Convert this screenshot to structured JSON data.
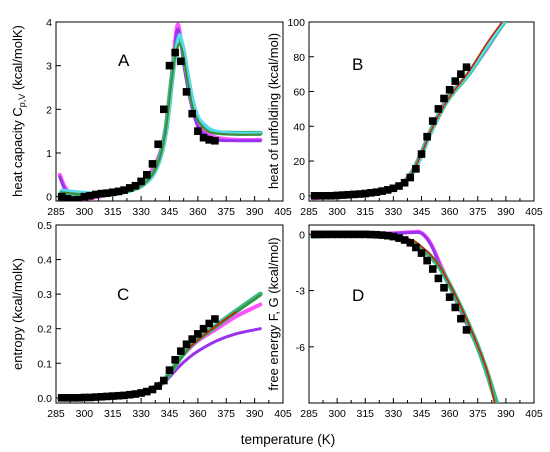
{
  "figure": {
    "xlabel": "temperature (K)"
  },
  "colors": {
    "magenta": "#ff33ff",
    "purple": "#9933ee",
    "green": "#33bb88",
    "cyan": "#55ddee",
    "darkgreen": "#448833",
    "red": "#cc2200",
    "marker": "#000000"
  },
  "chart_data": [
    {
      "panel": "A",
      "type": "line",
      "ylabel": "heat capacity C",
      "ylabel_sub": "p,V",
      "ylabel_unit": " (kcal/molK)",
      "xlim": [
        285,
        405
      ],
      "ylim": [
        -0.1,
        4
      ],
      "xticks": [
        285,
        300,
        315,
        330,
        345,
        360,
        375,
        390,
        405
      ],
      "yticks": [
        0,
        1,
        2,
        3,
        4
      ],
      "markers": {
        "x": [
          288,
          291,
          294,
          297,
          300,
          303,
          306,
          309,
          312,
          315,
          318,
          321,
          324,
          327,
          330,
          333,
          336,
          339,
          342,
          345,
          348,
          351,
          354,
          357,
          360,
          363,
          366,
          369
        ],
        "y": [
          0.0,
          -0.05,
          -0.08,
          -0.07,
          0.0,
          0.02,
          0.05,
          0.07,
          0.08,
          0.1,
          0.12,
          0.15,
          0.2,
          0.25,
          0.35,
          0.5,
          0.75,
          1.2,
          2.0,
          3.0,
          3.3,
          3.1,
          2.4,
          1.9,
          1.5,
          1.35,
          1.3,
          1.28
        ]
      },
      "series": [
        {
          "color": "magenta",
          "x": [
            287,
            290,
            295,
            300,
            310,
            320,
            330,
            335,
            340,
            343,
            346,
            349,
            351,
            353,
            356,
            360,
            365,
            370,
            380,
            393
          ],
          "y": [
            0.5,
            0.2,
            0.0,
            -0.05,
            0.02,
            0.1,
            0.3,
            0.55,
            1.0,
            1.6,
            2.7,
            3.9,
            3.6,
            3.0,
            2.3,
            1.7,
            1.45,
            1.35,
            1.3,
            1.3
          ]
        },
        {
          "color": "purple",
          "x": [
            287,
            290,
            295,
            300,
            310,
            320,
            330,
            335,
            340,
            343,
            346,
            349,
            351,
            353,
            356,
            360,
            365,
            370,
            380,
            393
          ],
          "y": [
            0.45,
            0.15,
            0.0,
            0.0,
            0.05,
            0.1,
            0.25,
            0.45,
            0.85,
            1.5,
            2.6,
            3.8,
            3.5,
            2.9,
            2.2,
            1.6,
            1.4,
            1.3,
            1.28,
            1.28
          ]
        },
        {
          "color": "green",
          "x": [
            288,
            300,
            310,
            320,
            330,
            336,
            340,
            343,
            346,
            348,
            350,
            352,
            354,
            357,
            360,
            365,
            370,
            380,
            393
          ],
          "y": [
            0.1,
            0.05,
            0.05,
            0.1,
            0.25,
            0.5,
            0.9,
            1.5,
            2.6,
            3.3,
            3.6,
            3.4,
            2.9,
            2.2,
            1.8,
            1.55,
            1.47,
            1.45,
            1.45
          ]
        },
        {
          "color": "cyan",
          "x": [
            288,
            300,
            310,
            320,
            330,
            336,
            340,
            343,
            346,
            348,
            350,
            352,
            354,
            357,
            360,
            365,
            370,
            380,
            393
          ],
          "y": [
            0.15,
            0.1,
            0.08,
            0.12,
            0.25,
            0.45,
            0.85,
            1.4,
            2.5,
            3.2,
            3.7,
            3.5,
            3.0,
            2.3,
            1.85,
            1.6,
            1.5,
            1.45,
            1.45
          ]
        },
        {
          "color": "darkgreen",
          "x": [
            288,
            300,
            310,
            320,
            330,
            336,
            340,
            343,
            346,
            348,
            350,
            352,
            354,
            357,
            360,
            365,
            370,
            380,
            393
          ],
          "y": [
            0.1,
            0.05,
            0.05,
            0.1,
            0.25,
            0.5,
            0.9,
            1.5,
            2.6,
            3.2,
            3.5,
            3.3,
            2.8,
            2.1,
            1.75,
            1.5,
            1.45,
            1.42,
            1.42
          ]
        }
      ]
    },
    {
      "panel": "B",
      "type": "line",
      "ylabel": "heat of unfolding (kcal/mol)",
      "xlim": [
        285,
        405
      ],
      "ylim": [
        -3,
        100
      ],
      "xticks": [
        285,
        300,
        315,
        330,
        345,
        360,
        375,
        390,
        405
      ],
      "yticks": [
        0,
        20,
        40,
        60,
        80,
        100
      ],
      "markers": {
        "x": [
          288,
          291,
          294,
          297,
          300,
          303,
          306,
          309,
          312,
          315,
          318,
          321,
          324,
          327,
          330,
          333,
          336,
          339,
          342,
          345,
          348,
          351,
          354,
          357,
          360,
          363,
          366,
          369
        ],
        "y": [
          0,
          0,
          0,
          0,
          0.2,
          0.4,
          0.6,
          0.8,
          1.0,
          1.3,
          1.7,
          2.1,
          2.7,
          3.4,
          4.3,
          5.6,
          7.5,
          10.5,
          15.5,
          24,
          34,
          43,
          50,
          56,
          61,
          66,
          70,
          74
        ]
      },
      "series": [
        {
          "color": "magenta",
          "x": [
            287,
            300,
            315,
            330,
            335,
            340,
            345,
            350,
            355,
            360,
            370,
            380,
            389
          ],
          "y": [
            -1.5,
            0,
            1.5,
            4.5,
            7.5,
            14,
            25,
            38,
            49,
            58,
            70,
            85,
            100
          ]
        },
        {
          "color": "cyan",
          "x": [
            287,
            300,
            315,
            330,
            335,
            340,
            345,
            350,
            355,
            360,
            370,
            380,
            389
          ],
          "y": [
            -1,
            0,
            1.2,
            4,
            6.5,
            12,
            22,
            36,
            48,
            57,
            70,
            86,
            100
          ]
        },
        {
          "color": "green",
          "x": [
            287,
            300,
            315,
            330,
            335,
            340,
            345,
            350,
            355,
            360,
            370,
            380,
            389
          ],
          "y": [
            -0.5,
            0,
            1.2,
            4.2,
            7,
            13,
            24,
            37,
            48,
            57,
            70,
            86,
            100
          ]
        },
        {
          "color": "red",
          "x": [
            287,
            300,
            315,
            330,
            335,
            340,
            345,
            350,
            355,
            360,
            370,
            380,
            388
          ],
          "y": [
            -0.5,
            0,
            1.2,
            4.2,
            7,
            13,
            24,
            37,
            48,
            57,
            71,
            88,
            100
          ]
        }
      ]
    },
    {
      "panel": "C",
      "type": "line",
      "ylabel": "entropy (kcal/molK)",
      "xlim": [
        285,
        405
      ],
      "ylim": [
        -0.015,
        0.5
      ],
      "xticks": [
        285,
        300,
        315,
        330,
        345,
        360,
        375,
        390,
        405
      ],
      "yticks": [
        0.0,
        0.1,
        0.2,
        0.3,
        0.4,
        0.5
      ],
      "markers": {
        "x": [
          288,
          291,
          294,
          297,
          300,
          303,
          306,
          309,
          312,
          315,
          318,
          321,
          324,
          327,
          330,
          333,
          336,
          339,
          342,
          345,
          348,
          351,
          354,
          357,
          360,
          363,
          366,
          369
        ],
        "y": [
          0,
          0,
          0,
          0,
          0.001,
          0.001,
          0.002,
          0.003,
          0.004,
          0.005,
          0.006,
          0.007,
          0.009,
          0.011,
          0.014,
          0.018,
          0.024,
          0.034,
          0.05,
          0.08,
          0.11,
          0.135,
          0.155,
          0.17,
          0.185,
          0.2,
          0.215,
          0.228
        ]
      },
      "series": [
        {
          "color": "magenta",
          "x": [
            287,
            300,
            315,
            330,
            340,
            345,
            350,
            355,
            360,
            370,
            380,
            393
          ],
          "y": [
            -0.003,
            0,
            0.005,
            0.015,
            0.04,
            0.07,
            0.11,
            0.14,
            0.165,
            0.2,
            0.235,
            0.27
          ]
        },
        {
          "color": "purple",
          "x": [
            287,
            300,
            315,
            330,
            340,
            345,
            350,
            355,
            360,
            370,
            380,
            393
          ],
          "y": [
            -0.003,
            0,
            0.004,
            0.013,
            0.035,
            0.06,
            0.09,
            0.115,
            0.135,
            0.165,
            0.185,
            0.2
          ]
        },
        {
          "color": "green",
          "x": [
            287,
            300,
            315,
            330,
            340,
            345,
            350,
            355,
            360,
            370,
            380,
            393
          ],
          "y": [
            -0.003,
            0,
            0.005,
            0.015,
            0.04,
            0.07,
            0.11,
            0.145,
            0.17,
            0.21,
            0.25,
            0.3
          ]
        },
        {
          "color": "darkgreen",
          "x": [
            287,
            300,
            315,
            330,
            340,
            345,
            350,
            355,
            360,
            370,
            380,
            393
          ],
          "y": [
            -0.003,
            0,
            0.005,
            0.015,
            0.04,
            0.07,
            0.108,
            0.142,
            0.167,
            0.207,
            0.247,
            0.297
          ]
        },
        {
          "color": "red",
          "x": [
            355,
            360,
            370,
            380
          ],
          "y": [
            0.142,
            0.168,
            0.21,
            0.248
          ]
        }
      ]
    },
    {
      "panel": "D",
      "type": "line",
      "ylabel": "free energy F, G (kcal/mol)",
      "xlim": [
        285,
        405
      ],
      "ylim": [
        -9,
        0.5
      ],
      "xticks": [
        285,
        300,
        315,
        330,
        345,
        360,
        375,
        390,
        405
      ],
      "yticks": [
        0,
        -3,
        -6
      ],
      "markers": {
        "x": [
          288,
          291,
          294,
          297,
          300,
          303,
          306,
          309,
          312,
          315,
          318,
          321,
          324,
          327,
          330,
          333,
          336,
          339,
          342,
          345,
          348,
          351,
          354,
          357,
          360,
          363,
          366,
          369
        ],
        "y": [
          0,
          0,
          0,
          0,
          0,
          0,
          0,
          0,
          0,
          0,
          -0.01,
          -0.02,
          -0.04,
          -0.07,
          -0.12,
          -0.2,
          -0.3,
          -0.45,
          -0.7,
          -1.0,
          -1.4,
          -1.85,
          -2.35,
          -2.85,
          -3.35,
          -3.9,
          -4.5,
          -5.1
        ]
      },
      "series": [
        {
          "color": "magenta",
          "x": [
            287,
            300,
            315,
            330,
            340,
            345,
            350,
            355,
            360,
            365,
            370,
            375,
            380,
            385
          ],
          "y": [
            0,
            0,
            0.02,
            0.06,
            0.12,
            0.08,
            -0.5,
            -1.6,
            -2.7,
            -3.8,
            -4.9,
            -6.0,
            -7.4,
            -9.0
          ]
        },
        {
          "color": "purple",
          "x": [
            287,
            300,
            315,
            330,
            340,
            345,
            350,
            355,
            360,
            365,
            370,
            375,
            380,
            385
          ],
          "y": [
            0,
            0,
            0.02,
            0.05,
            0.1,
            0.05,
            -0.55,
            -1.7,
            -2.8,
            -3.9,
            -5.0,
            -6.1,
            -7.5,
            -9.0
          ]
        },
        {
          "color": "green",
          "x": [
            287,
            300,
            315,
            330,
            340,
            345,
            350,
            355,
            360,
            365,
            370,
            375,
            380,
            385
          ],
          "y": [
            -0.1,
            -0.05,
            -0.05,
            -0.15,
            -0.4,
            -0.75,
            -1.2,
            -1.8,
            -2.7,
            -3.7,
            -4.8,
            -6.0,
            -7.4,
            -9.0
          ]
        },
        {
          "color": "red",
          "x": [
            287,
            300,
            315,
            330,
            340,
            345,
            350,
            355,
            360,
            365,
            370,
            375,
            380,
            384
          ],
          "y": [
            0,
            0,
            0,
            -0.05,
            -0.3,
            -0.65,
            -1.1,
            -1.75,
            -2.65,
            -3.65,
            -4.75,
            -5.95,
            -7.3,
            -9.0
          ]
        }
      ]
    }
  ]
}
